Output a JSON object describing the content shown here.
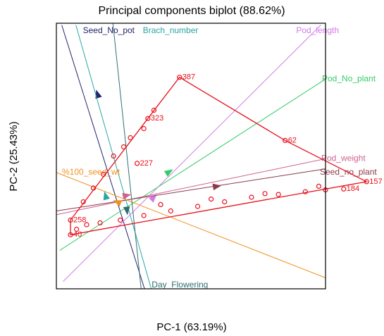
{
  "chart_data": {
    "type": "biplot",
    "title": "Principal components biplot (88.62%)",
    "x_label": "PC-1  (63.19%)",
    "y_label": "PC-2  (25.43%)",
    "xlim": [
      -1,
      3
    ],
    "ylim": [
      -1,
      1.9
    ],
    "point_color": "#e8101a",
    "points": {
      "x": [
        0.83,
        2.4,
        3.61,
        3.27,
        -0.79,
        -0.79,
        0.2,
        0.36,
        -0.6,
        -0.45,
        -0.3,
        -0.15,
        0.0,
        0.1,
        0.3,
        0.45,
        -0.7,
        -0.55,
        -0.35,
        -0.05,
        0.3,
        0.7,
        1.1,
        1.5,
        1.9,
        2.3,
        2.7,
        3.0,
        0.55,
        1.3,
        2.1,
        2.9
      ],
      "y": [
        1.31,
        0.62,
        0.17,
        0.09,
        -0.25,
        -0.41,
        0.37,
        0.86,
        -0.05,
        0.1,
        0.25,
        0.45,
        0.55,
        0.65,
        0.75,
        0.95,
        -0.35,
        -0.3,
        -0.28,
        -0.25,
        -0.2,
        -0.15,
        -0.1,
        -0.05,
        0.0,
        0.03,
        0.06,
        0.08,
        -0.08,
        -0.02,
        0.04,
        0.12
      ],
      "labels": [
        "387",
        "62",
        "157",
        "184",
        "258",
        "40",
        "227",
        "323",
        null,
        null,
        null,
        null,
        null,
        null,
        null,
        null,
        null,
        null,
        null,
        null,
        null,
        null,
        null,
        null,
        null,
        null,
        null,
        null,
        null,
        null,
        null,
        null
      ]
    },
    "hull": {
      "x": [
        0.83,
        2.4,
        3.61,
        -0.79,
        -0.79,
        0.36
      ],
      "y": [
        1.31,
        0.62,
        0.17,
        -0.41,
        -0.25,
        0.86
      ]
    },
    "variables": [
      {
        "name": "Seed_No_pot",
        "color": "#23236e",
        "from": [
          0.31,
          -1.0
        ],
        "to": [
          -0.92,
          1.88
        ],
        "arrow": [
          -0.39,
          1.13
        ]
      },
      {
        "name": "Brach_number",
        "color": "#2aa5a5",
        "from": [
          0.41,
          -1.0
        ],
        "to": [
          -0.71,
          1.88
        ],
        "arrow": [
          -0.27,
          0.02
        ]
      },
      {
        "name": "Pod_length",
        "color": "#d27ae6",
        "from": [
          -0.9,
          -0.92
        ],
        "to": [
          2.93,
          1.88
        ],
        "arrow": [
          0.45,
          0.0
        ]
      },
      {
        "name": "Pod_No_plant",
        "color": "#33cc66",
        "from": [
          -0.95,
          -0.58
        ],
        "to": [
          3.0,
          1.29
        ],
        "arrow": [
          0.68,
          0.28
        ]
      },
      {
        "name": "Pod_weight",
        "color": "#d0628f",
        "from": [
          -1.0,
          -0.19
        ],
        "to": [
          3.0,
          0.42
        ],
        "arrow": [
          0.05,
          0.02
        ]
      },
      {
        "name": "Seed_no_plant",
        "color": "#8b3a4a",
        "from": [
          -1.0,
          -0.15
        ],
        "to": [
          3.0,
          0.31
        ],
        "arrow": [
          1.39,
          0.12
        ]
      },
      {
        "name": "%100_seed_wt",
        "color": "#f0901e",
        "from": [
          3.0,
          -0.88
        ],
        "to": [
          -1.0,
          0.27
        ],
        "arrow": [
          -0.1,
          -0.05
        ]
      },
      {
        "name": "Day_Flowering",
        "color": "#2f6f6f",
        "from": [
          -0.16,
          1.9
        ],
        "to": [
          0.26,
          -1.0
        ],
        "arrow": [
          0.05,
          -0.15
        ]
      }
    ]
  }
}
